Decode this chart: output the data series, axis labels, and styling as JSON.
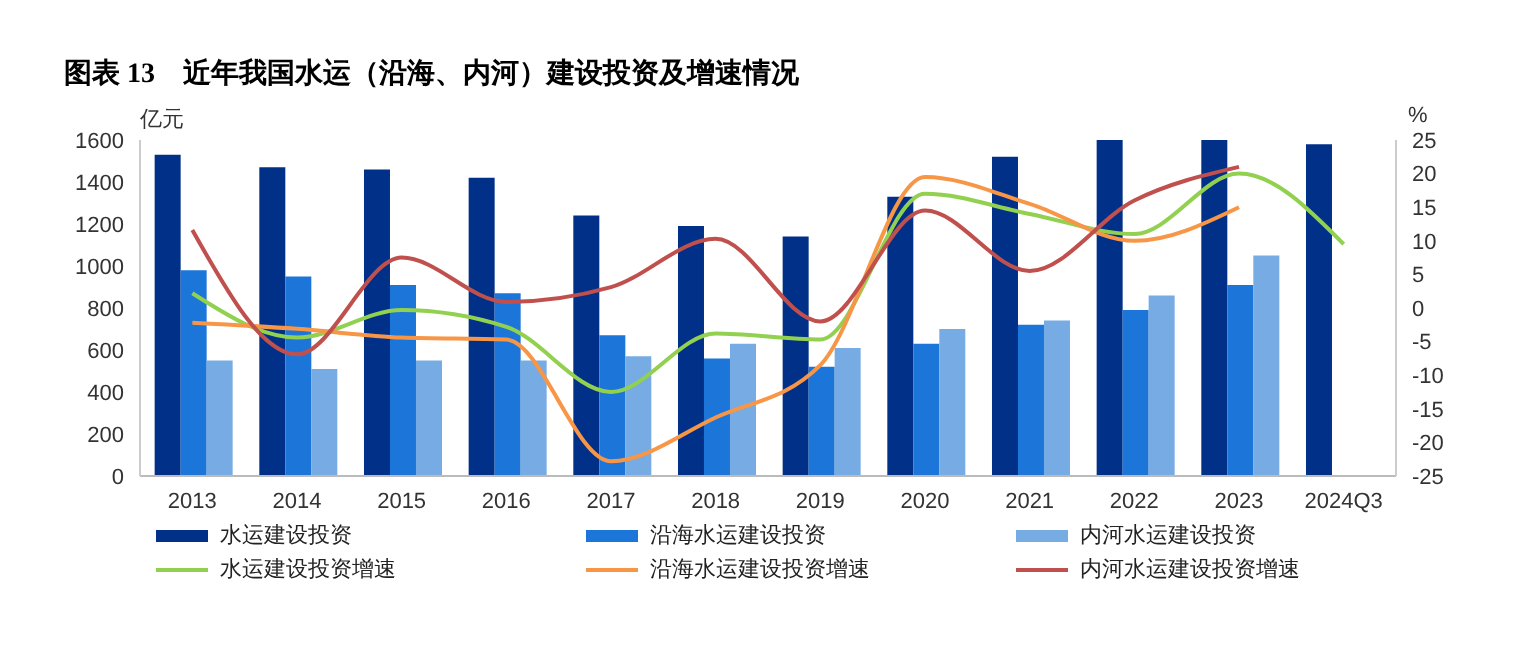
{
  "chart_data": {
    "type": "bar",
    "title": "图表 13　近年我国水运（沿海、内河）建设投资及增速情况",
    "ylabel": "亿元",
    "y2label": "%",
    "categories": [
      "2013",
      "2014",
      "2015",
      "2016",
      "2017",
      "2018",
      "2019",
      "2020",
      "2021",
      "2022",
      "2023",
      "2024Q3"
    ],
    "series": [
      {
        "name": "水运建设投资",
        "color": "#003087",
        "values": [
          1530,
          1470,
          1460,
          1420,
          1240,
          1190,
          1140,
          1330,
          1520,
          1600,
          1600,
          1580
        ]
      },
      {
        "name": "沿海水运建设投资",
        "color": "#1c75d8",
        "values": [
          980,
          950,
          910,
          870,
          670,
          560,
          520,
          630,
          720,
          790,
          910,
          null
        ]
      },
      {
        "name": "内河水运建设投资",
        "color": "#77abe3",
        "values": [
          550,
          510,
          550,
          550,
          570,
          630,
          610,
          700,
          740,
          860,
          1050,
          null
        ]
      },
      {
        "name": "水运建设投资增速",
        "type": "line",
        "axis": "y2",
        "color": "#92d050",
        "values": [
          2.2,
          -4.4,
          -0.3,
          -2.8,
          -12.5,
          -3.8,
          -4.7,
          17,
          14,
          11,
          20,
          9.5
        ]
      },
      {
        "name": "沿海水运建设投资增速",
        "type": "line",
        "axis": "y2",
        "color": "#f79646",
        "values": [
          -2.2,
          -3.1,
          -4.4,
          -4.7,
          -22.8,
          -16.3,
          -8.5,
          19.5,
          15.5,
          10,
          15,
          null
        ]
      },
      {
        "name": "内河水运建设投资增速",
        "type": "line",
        "axis": "y2",
        "color": "#c0504d",
        "values": [
          11.6,
          -6.9,
          7.5,
          0.9,
          3.1,
          10.3,
          -2,
          14.5,
          5.5,
          16,
          21,
          null
        ]
      }
    ],
    "ylim": [
      0,
      1600
    ],
    "yticks": [
      0,
      200,
      400,
      600,
      800,
      1000,
      1200,
      1400,
      1600
    ],
    "y2lim": [
      -25,
      25
    ],
    "y2ticks": [
      -25,
      -20,
      -15,
      -10,
      -5,
      0,
      5,
      10,
      15,
      20,
      25
    ],
    "grid": false,
    "legend": "bottom",
    "marker": "none",
    "line_style": "solid"
  }
}
